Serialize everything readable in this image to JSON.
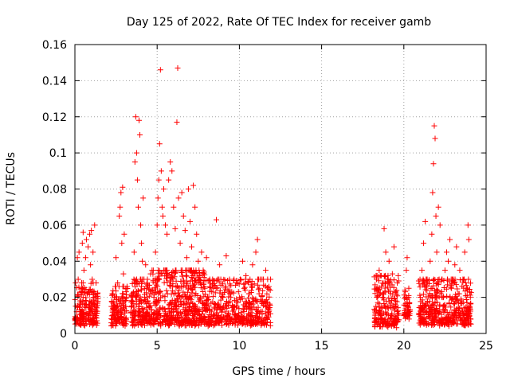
{
  "chart_data": {
    "type": "scatter",
    "title": "Day 125 of 2022, Rate Of TEC Index for receiver gamb",
    "xlabel": "GPS time / hours",
    "ylabel": "ROTI / TECUs",
    "xlim": [
      0,
      25
    ],
    "ylim": [
      0,
      0.16
    ],
    "xticks": [
      0,
      5,
      10,
      15,
      20,
      25
    ],
    "xtick_labels": [
      "0",
      "5",
      "10",
      "15",
      "20",
      "25"
    ],
    "yticks": [
      0,
      0.02,
      0.04,
      0.06,
      0.08,
      0.1,
      0.12,
      0.14,
      0.16
    ],
    "ytick_labels": [
      "0",
      "0.02",
      "0.04",
      "0.06",
      "0.08",
      "0.1",
      "0.12",
      "0.14",
      "0.16"
    ],
    "grid": true,
    "marker": "+",
    "point_color": "#ff0000",
    "series": [
      {
        "name": "ROTI",
        "points": [
          [
            0.1,
            0.012
          ],
          [
            0.2,
            0.03
          ],
          [
            0.25,
            0.045
          ],
          [
            0.3,
            0.018
          ],
          [
            0.35,
            0.008
          ],
          [
            0.4,
            0.025
          ],
          [
            0.45,
            0.05
          ],
          [
            0.5,
            0.056
          ],
          [
            0.55,
            0.035
          ],
          [
            0.6,
            0.015
          ],
          [
            0.65,
            0.042
          ],
          [
            0.7,
            0.052
          ],
          [
            0.75,
            0.022
          ],
          [
            0.8,
            0.048
          ],
          [
            0.85,
            0.01
          ],
          [
            0.9,
            0.055
          ],
          [
            0.95,
            0.038
          ],
          [
            1.0,
            0.057
          ],
          [
            1.05,
            0.03
          ],
          [
            1.1,
            0.045
          ],
          [
            1.15,
            0.02
          ],
          [
            1.2,
            0.06
          ],
          [
            1.25,
            0.012
          ],
          [
            0.15,
            0.042
          ],
          [
            0.5,
            0.02
          ],
          [
            0.9,
            0.005
          ],
          [
            2.3,
            0.014
          ],
          [
            2.4,
            0.02
          ],
          [
            2.5,
            0.042
          ],
          [
            2.6,
            0.028
          ],
          [
            2.65,
            0.012
          ],
          [
            2.7,
            0.065
          ],
          [
            2.75,
            0.07
          ],
          [
            2.8,
            0.078
          ],
          [
            2.85,
            0.05
          ],
          [
            2.9,
            0.081
          ],
          [
            2.95,
            0.033
          ],
          [
            3.0,
            0.055
          ],
          [
            3.05,
            0.018
          ],
          [
            3.1,
            0.025
          ],
          [
            2.55,
            0.006
          ],
          [
            3.5,
            0.02
          ],
          [
            3.6,
            0.045
          ],
          [
            3.65,
            0.095
          ],
          [
            3.7,
            0.12
          ],
          [
            3.75,
            0.1
          ],
          [
            3.8,
            0.085
          ],
          [
            3.85,
            0.07
          ],
          [
            3.9,
            0.118
          ],
          [
            3.95,
            0.11
          ],
          [
            4.0,
            0.06
          ],
          [
            4.05,
            0.05
          ],
          [
            4.1,
            0.04
          ],
          [
            4.2,
            0.03
          ],
          [
            4.3,
            0.038
          ],
          [
            4.4,
            0.025
          ],
          [
            4.5,
            0.015
          ],
          [
            4.6,
            0.033
          ],
          [
            3.55,
            0.008
          ],
          [
            4.15,
            0.075
          ],
          [
            4.8,
            0.02
          ],
          [
            4.9,
            0.045
          ],
          [
            5.0,
            0.06
          ],
          [
            5.05,
            0.075
          ],
          [
            5.1,
            0.085
          ],
          [
            5.15,
            0.105
          ],
          [
            5.2,
            0.146
          ],
          [
            5.25,
            0.09
          ],
          [
            5.3,
            0.07
          ],
          [
            5.35,
            0.065
          ],
          [
            5.4,
            0.08
          ],
          [
            5.5,
            0.06
          ],
          [
            5.6,
            0.055
          ],
          [
            5.7,
            0.085
          ],
          [
            5.8,
            0.095
          ],
          [
            5.9,
            0.09
          ],
          [
            6.0,
            0.07
          ],
          [
            6.1,
            0.058
          ],
          [
            6.2,
            0.117
          ],
          [
            6.25,
            0.147
          ],
          [
            6.3,
            0.075
          ],
          [
            6.4,
            0.05
          ],
          [
            6.5,
            0.078
          ],
          [
            6.6,
            0.065
          ],
          [
            6.7,
            0.057
          ],
          [
            6.8,
            0.042
          ],
          [
            6.9,
            0.08
          ],
          [
            7.0,
            0.062
          ],
          [
            7.1,
            0.048
          ],
          [
            7.2,
            0.082
          ],
          [
            7.3,
            0.07
          ],
          [
            7.4,
            0.055
          ],
          [
            7.5,
            0.04
          ],
          [
            7.6,
            0.03
          ],
          [
            7.7,
            0.045
          ],
          [
            7.8,
            0.035
          ],
          [
            7.9,
            0.025
          ],
          [
            8.0,
            0.042
          ],
          [
            8.2,
            0.03
          ],
          [
            8.4,
            0.025
          ],
          [
            8.6,
            0.063
          ],
          [
            8.8,
            0.038
          ],
          [
            9.0,
            0.02
          ],
          [
            9.2,
            0.043
          ],
          [
            9.4,
            0.03
          ],
          [
            9.6,
            0.015
          ],
          [
            9.8,
            0.028
          ],
          [
            10.0,
            0.02
          ],
          [
            10.2,
            0.04
          ],
          [
            10.4,
            0.032
          ],
          [
            10.6,
            0.022
          ],
          [
            10.8,
            0.038
          ],
          [
            11.0,
            0.045
          ],
          [
            11.1,
            0.052
          ],
          [
            11.2,
            0.025
          ],
          [
            11.4,
            0.018
          ],
          [
            11.6,
            0.035
          ],
          [
            11.8,
            0.012
          ],
          [
            5.5,
            0.005
          ],
          [
            8.1,
            0.004
          ],
          [
            10.5,
            0.006
          ],
          [
            18.3,
            0.015
          ],
          [
            18.4,
            0.025
          ],
          [
            18.5,
            0.035
          ],
          [
            18.6,
            0.01
          ],
          [
            18.7,
            0.02
          ],
          [
            18.8,
            0.058
          ],
          [
            18.9,
            0.045
          ],
          [
            19.0,
            0.03
          ],
          [
            19.1,
            0.04
          ],
          [
            19.2,
            0.022
          ],
          [
            19.3,
            0.033
          ],
          [
            19.4,
            0.048
          ],
          [
            19.5,
            0.018
          ],
          [
            19.6,
            0.028
          ],
          [
            18.45,
            0.005
          ],
          [
            20.1,
            0.02
          ],
          [
            20.15,
            0.035
          ],
          [
            20.2,
            0.042
          ],
          [
            20.25,
            0.015
          ],
          [
            20.3,
            0.025
          ],
          [
            20.35,
            0.01
          ],
          [
            21.0,
            0.02
          ],
          [
            21.1,
            0.035
          ],
          [
            21.2,
            0.05
          ],
          [
            21.3,
            0.062
          ],
          [
            21.4,
            0.03
          ],
          [
            21.5,
            0.015
          ],
          [
            21.6,
            0.04
          ],
          [
            21.7,
            0.055
          ],
          [
            21.75,
            0.078
          ],
          [
            21.8,
            0.094
          ],
          [
            21.85,
            0.115
          ],
          [
            21.9,
            0.108
          ],
          [
            21.95,
            0.065
          ],
          [
            22.0,
            0.045
          ],
          [
            22.1,
            0.07
          ],
          [
            22.2,
            0.06
          ],
          [
            22.3,
            0.03
          ],
          [
            22.4,
            0.02
          ],
          [
            22.5,
            0.035
          ],
          [
            22.6,
            0.045
          ],
          [
            22.7,
            0.04
          ],
          [
            22.8,
            0.052
          ],
          [
            22.9,
            0.025
          ],
          [
            23.0,
            0.03
          ],
          [
            23.1,
            0.038
          ],
          [
            23.2,
            0.048
          ],
          [
            23.3,
            0.022
          ],
          [
            23.4,
            0.035
          ],
          [
            23.5,
            0.018
          ],
          [
            23.6,
            0.03
          ],
          [
            23.7,
            0.045
          ],
          [
            23.8,
            0.025
          ],
          [
            23.9,
            0.06
          ],
          [
            23.95,
            0.052
          ],
          [
            24.0,
            0.015
          ],
          [
            21.5,
            0.005
          ],
          [
            23.0,
            0.006
          ]
        ]
      }
    ],
    "dense_clusters": [
      {
        "x_range": [
          0.0,
          1.4
        ],
        "y_range": [
          0.004,
          0.028
        ],
        "n": 190
      },
      {
        "x_range": [
          2.2,
          3.2
        ],
        "y_range": [
          0.004,
          0.026
        ],
        "n": 120
      },
      {
        "x_range": [
          3.4,
          4.6
        ],
        "y_range": [
          0.004,
          0.03
        ],
        "n": 170
      },
      {
        "x_range": [
          4.6,
          8.0
        ],
        "y_range": [
          0.004,
          0.035
        ],
        "n": 520
      },
      {
        "x_range": [
          8.0,
          11.9
        ],
        "y_range": [
          0.004,
          0.03
        ],
        "n": 430
      },
      {
        "x_range": [
          18.2,
          19.7
        ],
        "y_range": [
          0.003,
          0.032
        ],
        "n": 200
      },
      {
        "x_range": [
          20.0,
          20.4
        ],
        "y_range": [
          0.007,
          0.024
        ],
        "n": 45
      },
      {
        "x_range": [
          20.9,
          24.1
        ],
        "y_range": [
          0.004,
          0.03
        ],
        "n": 430
      }
    ]
  }
}
